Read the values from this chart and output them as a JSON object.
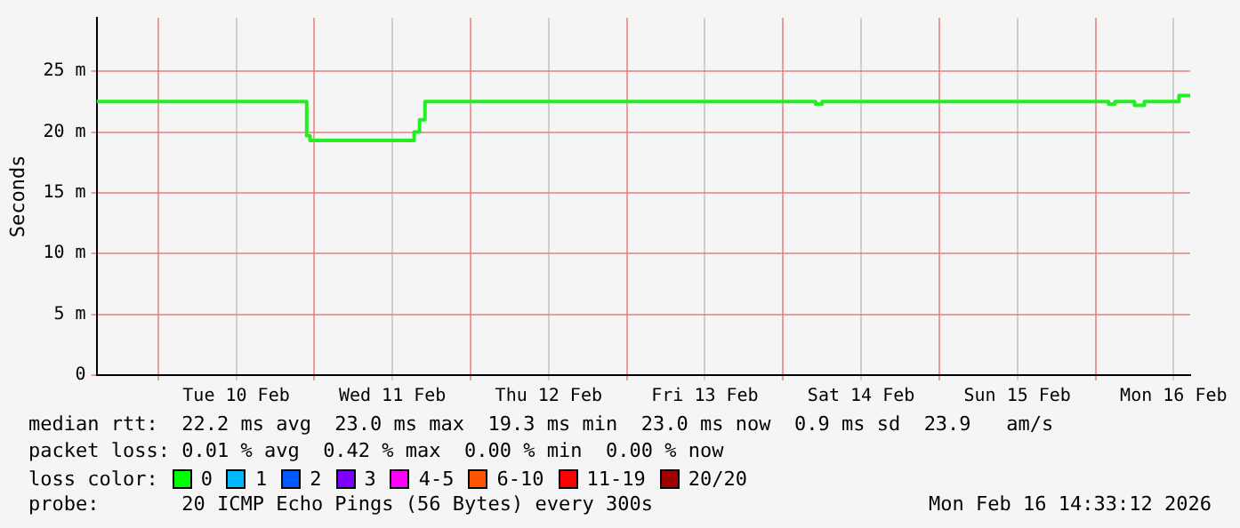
{
  "chart_data": {
    "type": "step",
    "ylabel": "Seconds",
    "grid": true,
    "legend": false,
    "marker": "none",
    "xlim": [
      "2026-02-09T14:33",
      "2026-02-16T14:33"
    ],
    "xticks": [
      {
        "value": "2026-02-10T00:00",
        "label": null
      },
      {
        "value": "2026-02-10T12:00",
        "label": "Tue 10 Feb"
      },
      {
        "value": "2026-02-11T00:00",
        "label": null
      },
      {
        "value": "2026-02-11T12:00",
        "label": "Wed 11 Feb"
      },
      {
        "value": "2026-02-12T00:00",
        "label": null
      },
      {
        "value": "2026-02-12T12:00",
        "label": "Thu 12 Feb"
      },
      {
        "value": "2026-02-13T00:00",
        "label": null
      },
      {
        "value": "2026-02-13T12:00",
        "label": "Fri 13 Feb"
      },
      {
        "value": "2026-02-14T00:00",
        "label": null
      },
      {
        "value": "2026-02-14T12:00",
        "label": "Sat 14 Feb"
      },
      {
        "value": "2026-02-15T00:00",
        "label": null
      },
      {
        "value": "2026-02-15T12:00",
        "label": "Sun 15 Feb"
      },
      {
        "value": "2026-02-16T00:00",
        "label": null
      },
      {
        "value": "2026-02-16T12:00",
        "label": "Mon 16 Feb"
      }
    ],
    "ylim": [
      0,
      29.4
    ],
    "yticks": [
      0,
      {
        "value": 5,
        "label": "5 m"
      },
      {
        "value": 10,
        "label": "10 m"
      },
      {
        "value": 15,
        "label": "15 m"
      },
      {
        "value": 20,
        "label": "20 m"
      },
      {
        "value": 25,
        "label": "25 m"
      }
    ],
    "series": [
      {
        "color": "#22ee22",
        "x": [
          "2026-02-09T14:33",
          "2026-02-10T22:50",
          "2026-02-10T23:20",
          "2026-02-11T15:20",
          "2026-02-11T16:10",
          "2026-02-11T17:00",
          "2026-02-14T05:00",
          "2026-02-14T06:00",
          "2026-02-16T02:00",
          "2026-02-16T03:00",
          "2026-02-16T06:00",
          "2026-02-16T07:30",
          "2026-02-16T12:50",
          "2026-02-16T14:33"
        ],
        "values": [
          22.5,
          19.7,
          19.3,
          20,
          21,
          22.5,
          22.3,
          22.5,
          22.3,
          22.5,
          22.2,
          22.5,
          23,
          23
        ]
      }
    ],
    "annotations": [
      "median rtt:  22.2 ms avg  23.0 ms max  19.3 ms min  23.0 ms now  0.9 ms sd  23.9   am/s",
      "packet loss: 0.01 % avg  0.42 % max  0.00 % min  0.00 % now",
      "loss color:",
      "0",
      "1",
      "2",
      "3",
      "4-5",
      "6-10",
      "11-19",
      "20/20",
      "probe:       20 ICMP Echo Pings (56 Bytes) every 300s",
      "Mon Feb 16 14:33:12 2026"
    ]
  }
}
